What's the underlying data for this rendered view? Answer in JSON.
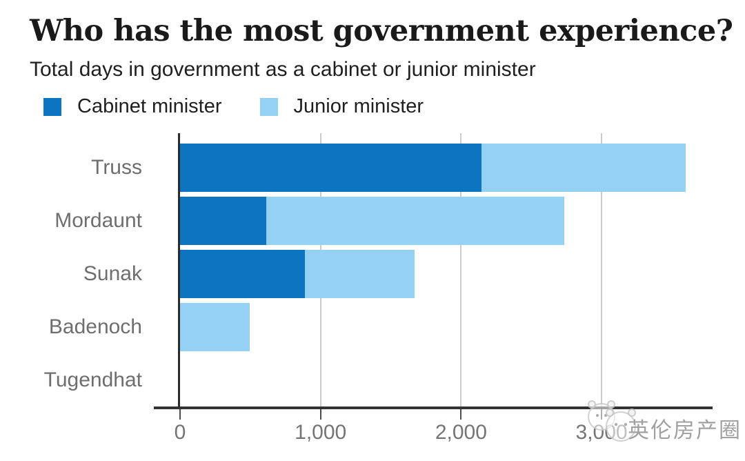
{
  "title": "Who has the most government experience?",
  "subtitle": "Total days in government as a cabinet or junior minister",
  "legend": [
    {
      "label": "Cabinet minister",
      "color": "#0d74c2"
    },
    {
      "label": "Junior minister",
      "color": "#95d1f4"
    }
  ],
  "watermark": {
    "text": "英伦房产圈",
    "icon": "bear-logo"
  },
  "colors": {
    "cabinet_blue": "#0d74c2",
    "junior_blue": "#95d1f4",
    "gridline": "#cccccc",
    "axis": "#333333",
    "muted_text": "#6e6e6e"
  },
  "chart_data": {
    "type": "bar",
    "orientation": "horizontal",
    "stacked": true,
    "title": "Who has the most government experience?",
    "subtitle": "Total days in government as a cabinet or junior minister",
    "xlabel": "",
    "ylabel": "",
    "categories": [
      "Truss",
      "Mordaunt",
      "Sunak",
      "Badenoch",
      "Tugendhat"
    ],
    "series": [
      {
        "name": "Cabinet minister",
        "color": "#0d74c2",
        "values": [
          2145,
          615,
          890,
          0,
          0
        ]
      },
      {
        "name": "Junior minister",
        "color": "#95d1f4",
        "values": [
          1455,
          2120,
          780,
          495,
          0
        ]
      }
    ],
    "totals": [
      3600,
      2735,
      1670,
      495,
      0
    ],
    "x_ticks": [
      0,
      1000,
      2000,
      3000
    ],
    "x_tick_labels": [
      "0",
      "1,000",
      "2,000",
      "3,000"
    ],
    "xlim": [
      0,
      3790
    ],
    "grid": true,
    "legend_position": "top",
    "units": "days"
  }
}
